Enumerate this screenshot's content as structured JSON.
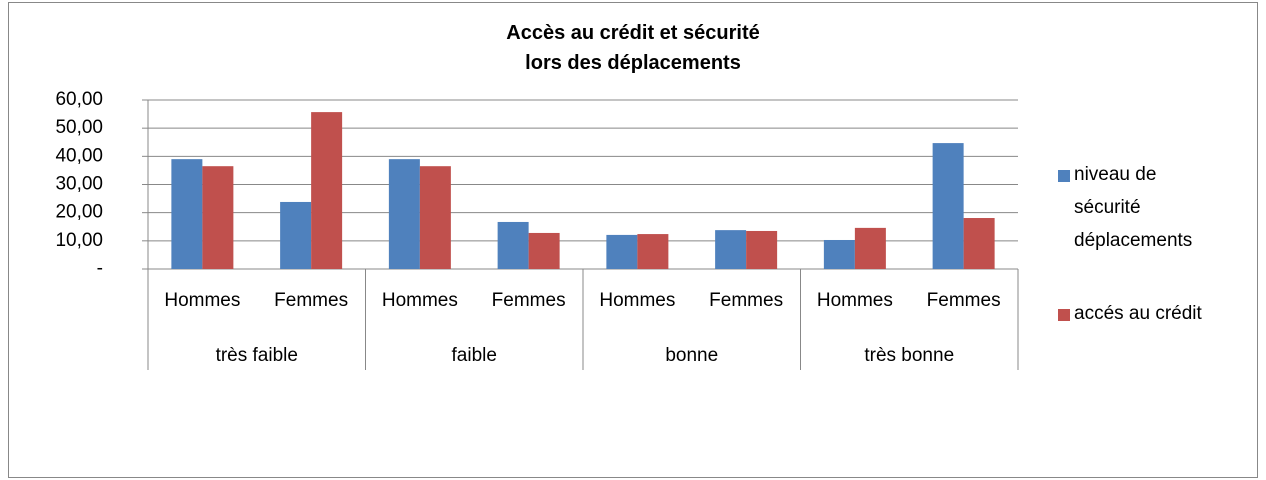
{
  "chart_data": {
    "type": "bar",
    "title": "Accès au crédit et sécurité\nlors des déplacements",
    "categories": [
      "Hommes",
      "Femmes",
      "Hommes",
      "Femmes",
      "Hommes",
      "Femmes",
      "Hommes",
      "Femmes"
    ],
    "groups": [
      "très faible",
      "faible",
      "bonne",
      "très bonne"
    ],
    "series": [
      {
        "name": "niveau de\nsécurité\ndéplacements",
        "color": "#4f81bd",
        "values": [
          39,
          23.8,
          39,
          16.7,
          12.1,
          13.8,
          10.3,
          44.7
        ]
      },
      {
        "name": "accés au crédit",
        "color": "#c0504d",
        "values": [
          36.5,
          55.7,
          36.5,
          12.8,
          12.4,
          13.5,
          14.6,
          18.1
        ]
      }
    ],
    "ylim": [
      0,
      60
    ],
    "yticks": [
      {
        "value": 0,
        "label": "-"
      },
      {
        "value": 10,
        "label": "10,00"
      },
      {
        "value": 20,
        "label": "20,00"
      },
      {
        "value": 30,
        "label": "30,00"
      },
      {
        "value": 40,
        "label": "40,00"
      },
      {
        "value": 50,
        "label": "50,00"
      },
      {
        "value": 60,
        "label": "60,00"
      }
    ],
    "grid": true,
    "legend": "right"
  }
}
